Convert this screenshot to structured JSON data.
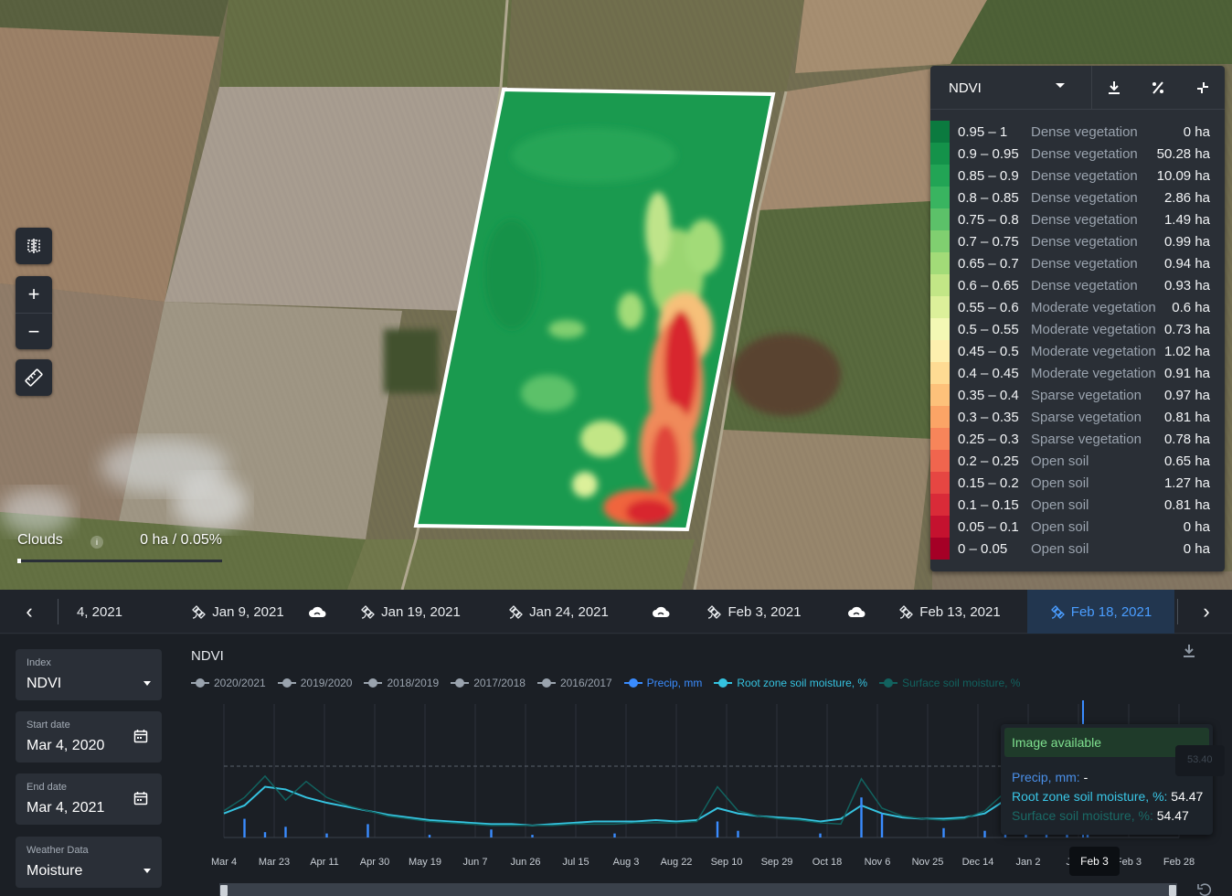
{
  "colors": {
    "accent": "#4a9dff",
    "panel": "#2a2f36",
    "field_border": "#ffffff",
    "avail_green": "#7fe08f",
    "series_2020": "#9aa3ae",
    "precip": "#3a8cff",
    "root_zone": "#35c3e0",
    "surface": "#12625f"
  },
  "map": {
    "clouds_label": "Clouds",
    "clouds_info": "i",
    "clouds_value": "0 ha / 0.05%",
    "clouds_progress": 0.0005,
    "tools": {
      "compare_icon": "split-view-icon",
      "zoom_in": "+",
      "zoom_out": "−",
      "ruler_icon": "ruler-icon"
    }
  },
  "legend": {
    "index": "NDVI",
    "actions": [
      "download-icon",
      "percent-icon",
      "collapse-icon"
    ],
    "rows": [
      {
        "range": "0.95 – 1",
        "class": "Dense vegetation",
        "area": "0 ha",
        "color": "#0b7a3f"
      },
      {
        "range": "0.9 – 0.95",
        "class": "Dense vegetation",
        "area": "50.28 ha",
        "color": "#14924a"
      },
      {
        "range": "0.85 – 0.9",
        "class": "Dense vegetation",
        "area": "10.09 ha",
        "color": "#22a455"
      },
      {
        "range": "0.8 – 0.85",
        "class": "Dense vegetation",
        "area": "2.86 ha",
        "color": "#39b460"
      },
      {
        "range": "0.75 – 0.8",
        "class": "Dense vegetation",
        "area": "1.49 ha",
        "color": "#5cc169"
      },
      {
        "range": "0.7 – 0.75",
        "class": "Dense vegetation",
        "area": "0.99 ha",
        "color": "#80cf70"
      },
      {
        "range": "0.65 – 0.7",
        "class": "Dense vegetation",
        "area": "0.94 ha",
        "color": "#a2db78"
      },
      {
        "range": "0.6 – 0.65",
        "class": "Dense vegetation",
        "area": "0.93 ha",
        "color": "#c2e686"
      },
      {
        "range": "0.55 – 0.6",
        "class": "Moderate vegetation",
        "area": "0.6 ha",
        "color": "#dcf09a"
      },
      {
        "range": "0.5 – 0.55",
        "class": "Moderate vegetation",
        "area": "0.73 ha",
        "color": "#f3f8b4"
      },
      {
        "range": "0.45 – 0.5",
        "class": "Moderate vegetation",
        "area": "1.02 ha",
        "color": "#fdefae"
      },
      {
        "range": "0.4 – 0.45",
        "class": "Moderate vegetation",
        "area": "0.91 ha",
        "color": "#fedb93"
      },
      {
        "range": "0.35 – 0.4",
        "class": "Sparse vegetation",
        "area": "0.97 ha",
        "color": "#fdc17a"
      },
      {
        "range": "0.3 – 0.35",
        "class": "Sparse vegetation",
        "area": "0.81 ha",
        "color": "#fba466"
      },
      {
        "range": "0.25 – 0.3",
        "class": "Sparse vegetation",
        "area": "0.78 ha",
        "color": "#f7855a"
      },
      {
        "range": "0.2 – 0.25",
        "class": "Open soil",
        "area": "0.65 ha",
        "color": "#f0654e"
      },
      {
        "range": "0.15 – 0.2",
        "class": "Open soil",
        "area": "1.27 ha",
        "color": "#e64642"
      },
      {
        "range": "0.1 – 0.15",
        "class": "Open soil",
        "area": "0.81 ha",
        "color": "#d92b38"
      },
      {
        "range": "0.05 – 0.1",
        "class": "Open soil",
        "area": "0 ha",
        "color": "#c4122f"
      },
      {
        "range": "0 – 0.05",
        "class": "Open soil",
        "area": "0 ha",
        "color": "#a50026"
      }
    ]
  },
  "timeline": {
    "items": [
      {
        "label": "4, 2021",
        "icon": "none"
      },
      {
        "label": "Jan 9, 2021",
        "icon": "satellite-icon"
      },
      {
        "label": "",
        "icon": "cloud-icon"
      },
      {
        "label": "Jan 19, 2021",
        "icon": "satellite-icon"
      },
      {
        "label": "Jan 24, 2021",
        "icon": "satellite-icon"
      },
      {
        "label": "",
        "icon": "cloud-icon"
      },
      {
        "label": "Feb 3, 2021",
        "icon": "satellite-icon"
      },
      {
        "label": "",
        "icon": "cloud-icon"
      },
      {
        "label": "Feb 13, 2021",
        "icon": "satellite-icon"
      },
      {
        "label": "Feb 18, 2021",
        "icon": "satellite-icon",
        "active": true
      }
    ],
    "prev": "‹",
    "next": "›"
  },
  "filters": {
    "index_label": "Index",
    "index_value": "NDVI",
    "start_label": "Start date",
    "start_value": "Mar 4, 2020",
    "end_label": "End date",
    "end_value": "Mar 4, 2021",
    "weather_label": "Weather Data",
    "weather_value": "Moisture"
  },
  "chart": {
    "title": "NDVI",
    "legend": [
      {
        "name": "2020/2021",
        "color": "#9aa3ae"
      },
      {
        "name": "2019/2020",
        "color": "#9aa3ae"
      },
      {
        "name": "2018/2019",
        "color": "#9aa3ae"
      },
      {
        "name": "2017/2018",
        "color": "#9aa3ae"
      },
      {
        "name": "2016/2017",
        "color": "#9aa3ae"
      },
      {
        "name": "Precip, mm",
        "color": "#3a8cff"
      },
      {
        "name": "Root zone soil moisture, %",
        "color": "#35c3e0"
      },
      {
        "name": "Surface soil moisture, %",
        "color": "#12625f"
      }
    ],
    "tooltip": {
      "status": "Image available",
      "precip_label": "Precip, mm:",
      "precip_value": "-",
      "root_label": "Root zone soil moisture, %:",
      "root_value": "54.47",
      "surface_label": "Surface soil moisture, %:",
      "surface_value": "54.47"
    },
    "side_value": "53.40",
    "date_flag": "Feb 3"
  },
  "chart_data": {
    "type": "line",
    "x_ticks": [
      "Mar 4",
      "Mar 23",
      "Apr 11",
      "Apr 30",
      "May 19",
      "Jun 7",
      "Jun 26",
      "Jul 15",
      "Aug 3",
      "Aug 22",
      "Sep 10",
      "Sep 29",
      "Oct 18",
      "Nov 6",
      "Nov 25",
      "Dec 14",
      "Jan 2",
      "Jan 2",
      "Feb 3",
      "Feb 28"
    ],
    "series": [
      {
        "name": "Root zone soil moisture, %",
        "values": [
          18,
          24,
          38,
          36,
          30,
          26,
          23,
          20,
          17,
          15,
          13,
          12,
          11,
          10,
          10,
          9,
          10,
          11,
          12,
          12,
          12,
          13,
          12,
          13,
          22,
          18,
          16,
          15,
          14,
          12,
          14,
          24,
          18,
          15,
          14,
          14,
          15,
          18,
          28,
          40,
          55,
          68,
          72
        ]
      },
      {
        "name": "Surface soil moisture, %",
        "values": [
          20,
          30,
          46,
          28,
          42,
          30,
          24,
          20,
          16,
          14,
          12,
          11,
          10,
          9,
          9,
          9,
          9,
          10,
          10,
          10,
          11,
          11,
          11,
          12,
          38,
          20,
          16,
          14,
          13,
          11,
          10,
          44,
          22,
          16,
          14,
          13,
          14,
          20,
          34,
          48,
          62,
          74,
          78
        ]
      },
      {
        "name": "Precip, mm",
        "values": [
          0,
          14,
          4,
          8,
          0,
          3,
          0,
          10,
          0,
          0,
          2,
          0,
          0,
          6,
          0,
          2,
          0,
          0,
          0,
          3,
          0,
          0,
          0,
          0,
          12,
          5,
          0,
          0,
          0,
          3,
          0,
          30,
          18,
          0,
          0,
          7,
          0,
          5,
          14,
          10,
          40,
          18,
          8
        ]
      }
    ],
    "dashed_level": 53.4,
    "grid": true
  }
}
